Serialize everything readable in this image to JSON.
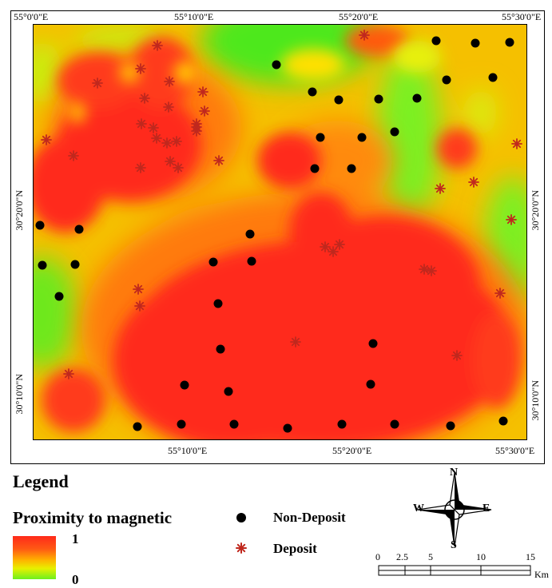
{
  "map": {
    "top_labels": [
      "55°0'0\"E",
      "55°10'0\"E",
      "55°20'0\"E",
      "55°30'0\"E"
    ],
    "bottom_labels": [
      "55°10'0\"E",
      "55°20'0\"E",
      "55°30'0\"E"
    ],
    "left_labels": [
      "30°20'0\"N",
      "30°10'0\"N"
    ],
    "right_labels": [
      "30°20'0\"N",
      "30°10'0\"N"
    ]
  },
  "legend": {
    "title": "Legend",
    "proximity_title": "Proximity to magnetic",
    "high_value": "1",
    "low_value": "0",
    "non_deposit_label": "Non-Deposit",
    "deposit_label": "Deposit"
  },
  "compass": {
    "n": "N",
    "s": "S",
    "e": "E",
    "w": "W"
  },
  "scale": {
    "ticks": [
      "0",
      "2.5",
      "5",
      "10",
      "15"
    ],
    "unit": "Km"
  },
  "colors": {
    "high": "#ff2a1a",
    "mid": "#ffb000",
    "low": "#6ef01e",
    "deposit": "#c0281e",
    "non_deposit": "#000000"
  }
}
